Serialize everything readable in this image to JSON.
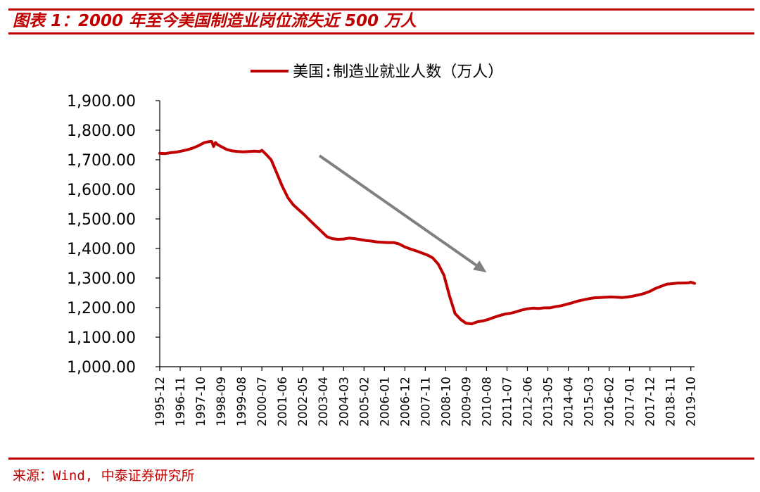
{
  "header": {
    "title": "图表 1：2000 年至今美国制造业岗位流失近 500 万人"
  },
  "footer": {
    "source": "来源：Wind, 中泰证券研究所"
  },
  "colors": {
    "accent": "#c00000",
    "series_line": "#c00000",
    "arrow": "#808080",
    "axis": "#000000"
  },
  "chart_data": {
    "type": "line",
    "legend": {
      "label": "美国:制造业就业人数（万人）",
      "placement": "top-center"
    },
    "y_tick_labels": [
      "1,000.00",
      "1,100.00",
      "1,200.00",
      "1,300.00",
      "1,400.00",
      "1,500.00",
      "1,600.00",
      "1,700.00",
      "1,800.00",
      "1,900.00"
    ],
    "ylim": [
      1000,
      1900
    ],
    "x_tick_labels": [
      "1995-12",
      "1996-11",
      "1997-10",
      "1998-09",
      "1999-08",
      "2000-07",
      "2001-06",
      "2002-05",
      "2003-04",
      "2004-03",
      "2005-02",
      "2006-01",
      "2006-12",
      "2007-11",
      "2008-10",
      "2009-09",
      "2010-08",
      "2011-07",
      "2012-06",
      "2013-05",
      "2014-04",
      "2015-03",
      "2016-02",
      "2017-01",
      "2017-12",
      "2018-11",
      "2019-10"
    ],
    "xlim": [
      "1995-12",
      "2019-12"
    ],
    "grid": false,
    "annotations": [
      {
        "type": "arrow",
        "from": {
          "x": "2003-02",
          "y": 1714
        },
        "to": {
          "x": "2010-08",
          "y": 1319
        }
      }
    ],
    "series": [
      {
        "name": "美国:制造业就业人数（万人）",
        "x": [
          "1995-12",
          "1996-03",
          "1996-06",
          "1996-09",
          "1996-12",
          "1997-03",
          "1997-06",
          "1997-09",
          "1997-12",
          "1998-03",
          "1998-04",
          "1998-05",
          "1998-06",
          "1998-07",
          "1998-09",
          "1998-12",
          "1999-03",
          "1999-06",
          "1999-09",
          "1999-12",
          "2000-03",
          "2000-06",
          "2000-07",
          "2000-09",
          "2000-12",
          "2001-03",
          "2001-06",
          "2001-09",
          "2001-12",
          "2002-03",
          "2002-06",
          "2002-09",
          "2002-12",
          "2003-03",
          "2003-06",
          "2003-09",
          "2003-12",
          "2004-03",
          "2004-06",
          "2004-09",
          "2004-12",
          "2005-03",
          "2005-06",
          "2005-09",
          "2005-12",
          "2006-03",
          "2006-06",
          "2006-09",
          "2006-12",
          "2007-03",
          "2007-06",
          "2007-09",
          "2007-12",
          "2008-03",
          "2008-06",
          "2008-09",
          "2008-12",
          "2009-03",
          "2009-06",
          "2009-09",
          "2009-12",
          "2010-03",
          "2010-06",
          "2010-09",
          "2010-12",
          "2011-03",
          "2011-06",
          "2011-09",
          "2011-12",
          "2012-03",
          "2012-06",
          "2012-09",
          "2012-12",
          "2013-03",
          "2013-06",
          "2013-09",
          "2013-12",
          "2014-03",
          "2014-06",
          "2014-09",
          "2014-12",
          "2015-03",
          "2015-06",
          "2015-09",
          "2015-12",
          "2016-03",
          "2016-06",
          "2016-09",
          "2016-12",
          "2017-03",
          "2017-06",
          "2017-09",
          "2017-12",
          "2018-03",
          "2018-06",
          "2018-09",
          "2018-12",
          "2019-03",
          "2019-06",
          "2019-09",
          "2019-10",
          "2019-12"
        ],
        "values": [
          1722,
          1721,
          1724,
          1726,
          1730,
          1734,
          1740,
          1748,
          1758,
          1762,
          1762,
          1745,
          1758,
          1752,
          1745,
          1735,
          1730,
          1728,
          1727,
          1728,
          1729,
          1728,
          1732,
          1720,
          1700,
          1655,
          1610,
          1572,
          1547,
          1530,
          1513,
          1494,
          1476,
          1458,
          1440,
          1433,
          1431,
          1432,
          1435,
          1433,
          1430,
          1427,
          1425,
          1422,
          1421,
          1420,
          1420,
          1415,
          1405,
          1398,
          1392,
          1385,
          1378,
          1368,
          1347,
          1310,
          1240,
          1180,
          1160,
          1147,
          1145,
          1152,
          1155,
          1160,
          1167,
          1173,
          1178,
          1181,
          1186,
          1192,
          1196,
          1198,
          1197,
          1199,
          1199,
          1203,
          1206,
          1211,
          1216,
          1222,
          1226,
          1230,
          1233,
          1234,
          1235,
          1236,
          1235,
          1234,
          1236,
          1239,
          1243,
          1248,
          1255,
          1265,
          1272,
          1279,
          1281,
          1283,
          1283,
          1284,
          1286,
          1282
        ]
      }
    ]
  }
}
